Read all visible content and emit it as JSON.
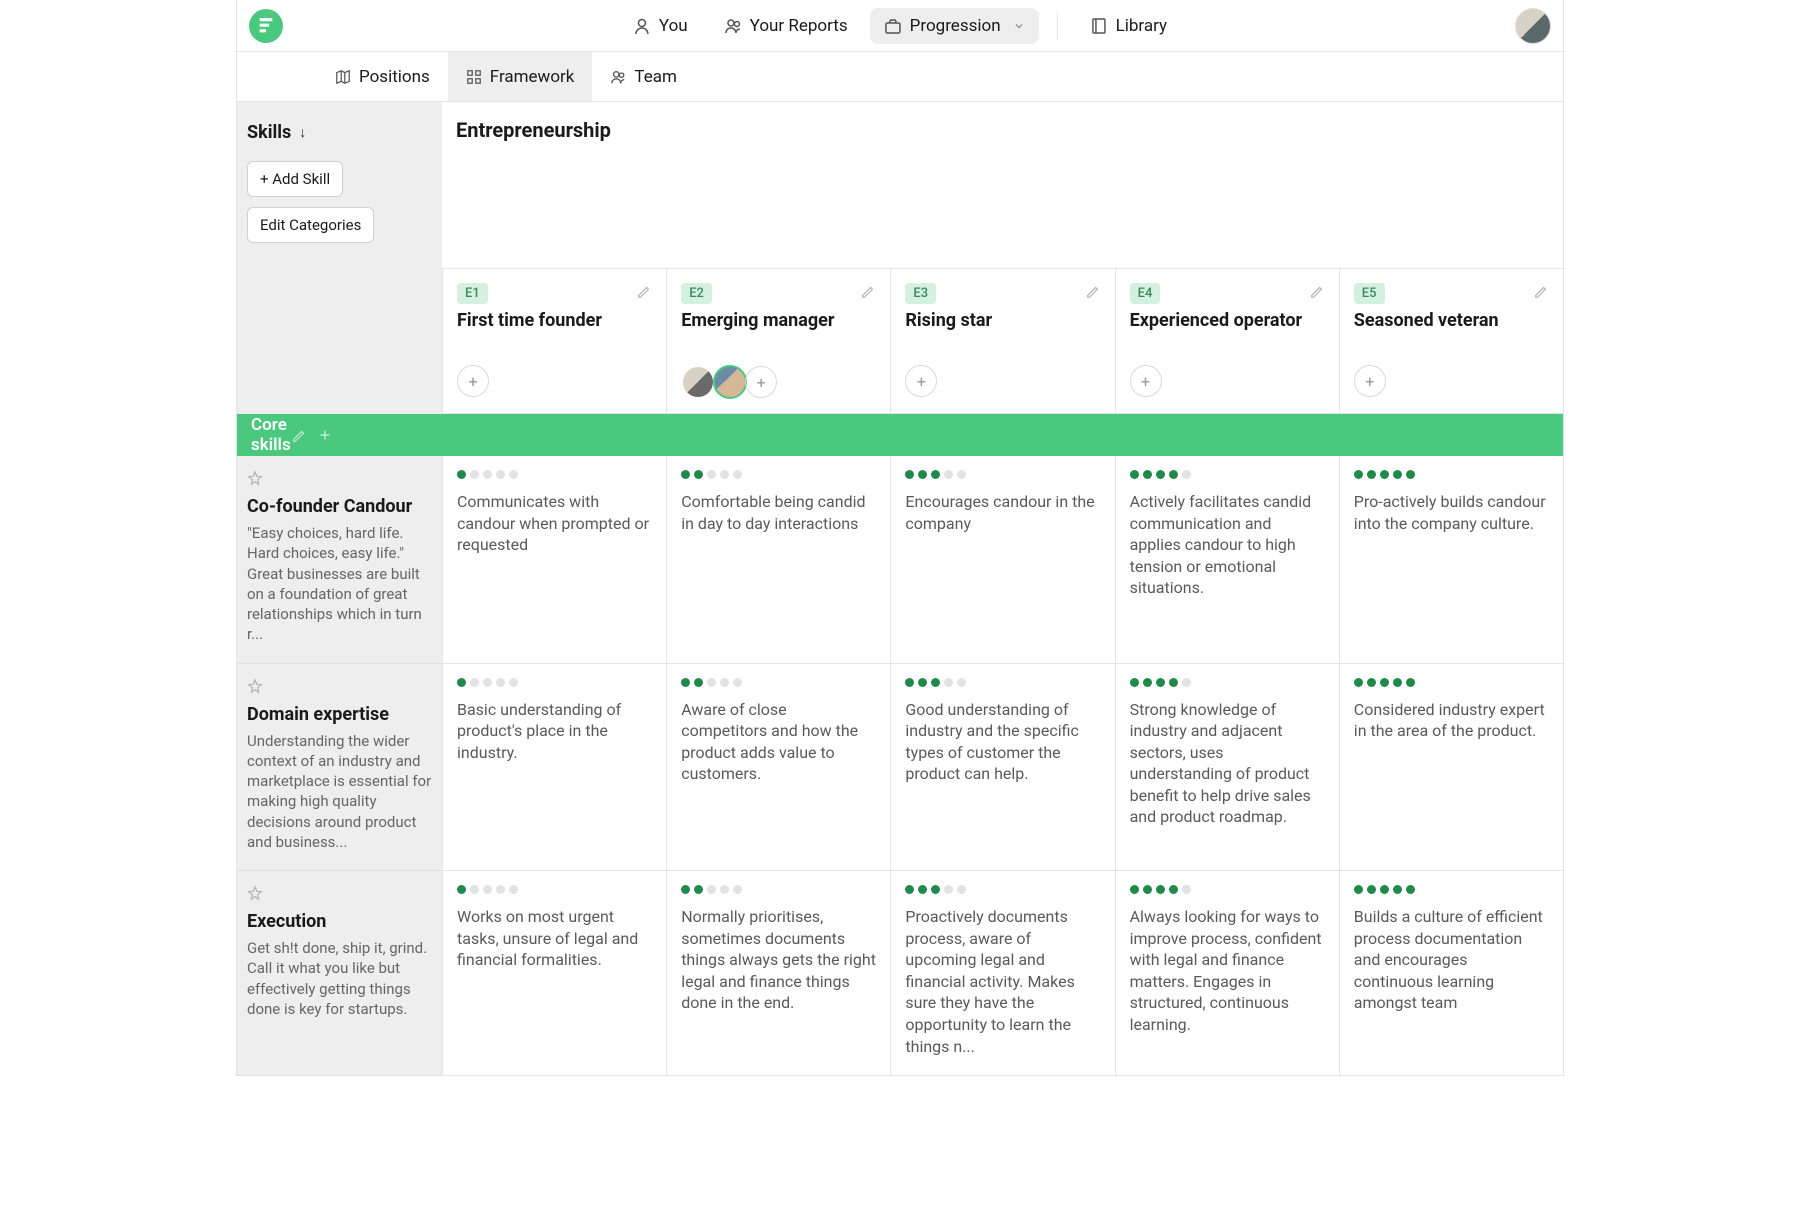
{
  "colors": {
    "primary": "#4ac97e",
    "badge_bg": "#d4f0de",
    "badge_fg": "#3a8a5f",
    "dot_on": "#1f8a4c",
    "dot_off": "#e2e2e2",
    "sidebar_bg": "#edeeed",
    "border": "#e5e5e5"
  },
  "topnav": {
    "items": [
      {
        "label": "You",
        "icon": "user"
      },
      {
        "label": "Your Reports",
        "icon": "users"
      },
      {
        "label": "Progression",
        "icon": "briefcase",
        "active": true,
        "chevron": true
      },
      {
        "label": "Library",
        "icon": "book",
        "divider_before": true
      }
    ]
  },
  "subnav": {
    "items": [
      {
        "label": "Positions",
        "icon": "map"
      },
      {
        "label": "Framework",
        "icon": "grid",
        "active": true
      },
      {
        "label": "Team",
        "icon": "users"
      }
    ]
  },
  "sidebar": {
    "heading": "Skills",
    "add_skill": "+ Add Skill",
    "edit_categories": "Edit Categories"
  },
  "track": {
    "title": "Entrepreneurship"
  },
  "levels": [
    {
      "code": "E1",
      "name": "First time founder",
      "people": 0
    },
    {
      "code": "E2",
      "name": "Emerging manager",
      "people": 2
    },
    {
      "code": "E3",
      "name": "Rising star",
      "people": 0
    },
    {
      "code": "E4",
      "name": "Experienced operator",
      "people": 0
    },
    {
      "code": "E5",
      "name": "Seasoned veteran",
      "people": 0
    }
  ],
  "category": {
    "name": "Core skills"
  },
  "skills": [
    {
      "name": "Co-founder Candour",
      "desc": "\"Easy choices, hard life. Hard choices, easy life.\" Great businesses are built on a foundation of great relationships which in turn r...",
      "cells": [
        {
          "level": 1,
          "text": "Communicates with candour when prompted or requested"
        },
        {
          "level": 2,
          "text": "Comfortable being candid in day to day interactions"
        },
        {
          "level": 3,
          "text": "Encourages candour in the company"
        },
        {
          "level": 4,
          "text": "Actively facilitates candid communication and applies candour to high tension or emotional situations."
        },
        {
          "level": 5,
          "text": "Pro-actively builds candour into the company culture."
        }
      ]
    },
    {
      "name": "Domain expertise",
      "desc": "Understanding the wider context of an industry and marketplace is essential for making high quality decisions around product and business...",
      "cells": [
        {
          "level": 1,
          "text": "Basic understanding of product's place in the industry."
        },
        {
          "level": 2,
          "text": "Aware of close competitors and how the product adds value to customers."
        },
        {
          "level": 3,
          "text": "Good understanding of industry and the specific types of customer the product can help."
        },
        {
          "level": 4,
          "text": "Strong knowledge of industry and adjacent sectors, uses understanding of product benefit to help drive sales and product roadmap."
        },
        {
          "level": 5,
          "text": "Considered industry expert in the area of the product."
        }
      ]
    },
    {
      "name": "Execution",
      "desc": "Get sh!t done, ship it, grind. Call it what you like but effectively getting things done is key for startups.",
      "cells": [
        {
          "level": 1,
          "text": "Works on most urgent tasks, unsure of legal and financial formalities."
        },
        {
          "level": 2,
          "text": "Normally prioritises, sometimes documents things always gets the right legal and finance things done in the end."
        },
        {
          "level": 3,
          "text": "Proactively documents process, aware of upcoming legal and financial activity. Makes sure they have the opportunity to learn the things n..."
        },
        {
          "level": 4,
          "text": "Always looking for ways to improve process, confident with legal and finance matters. Engages in structured, continuous learning."
        },
        {
          "level": 5,
          "text": "Builds a culture of efficient process documentation and encourages continuous learning amongst team"
        }
      ]
    }
  ]
}
